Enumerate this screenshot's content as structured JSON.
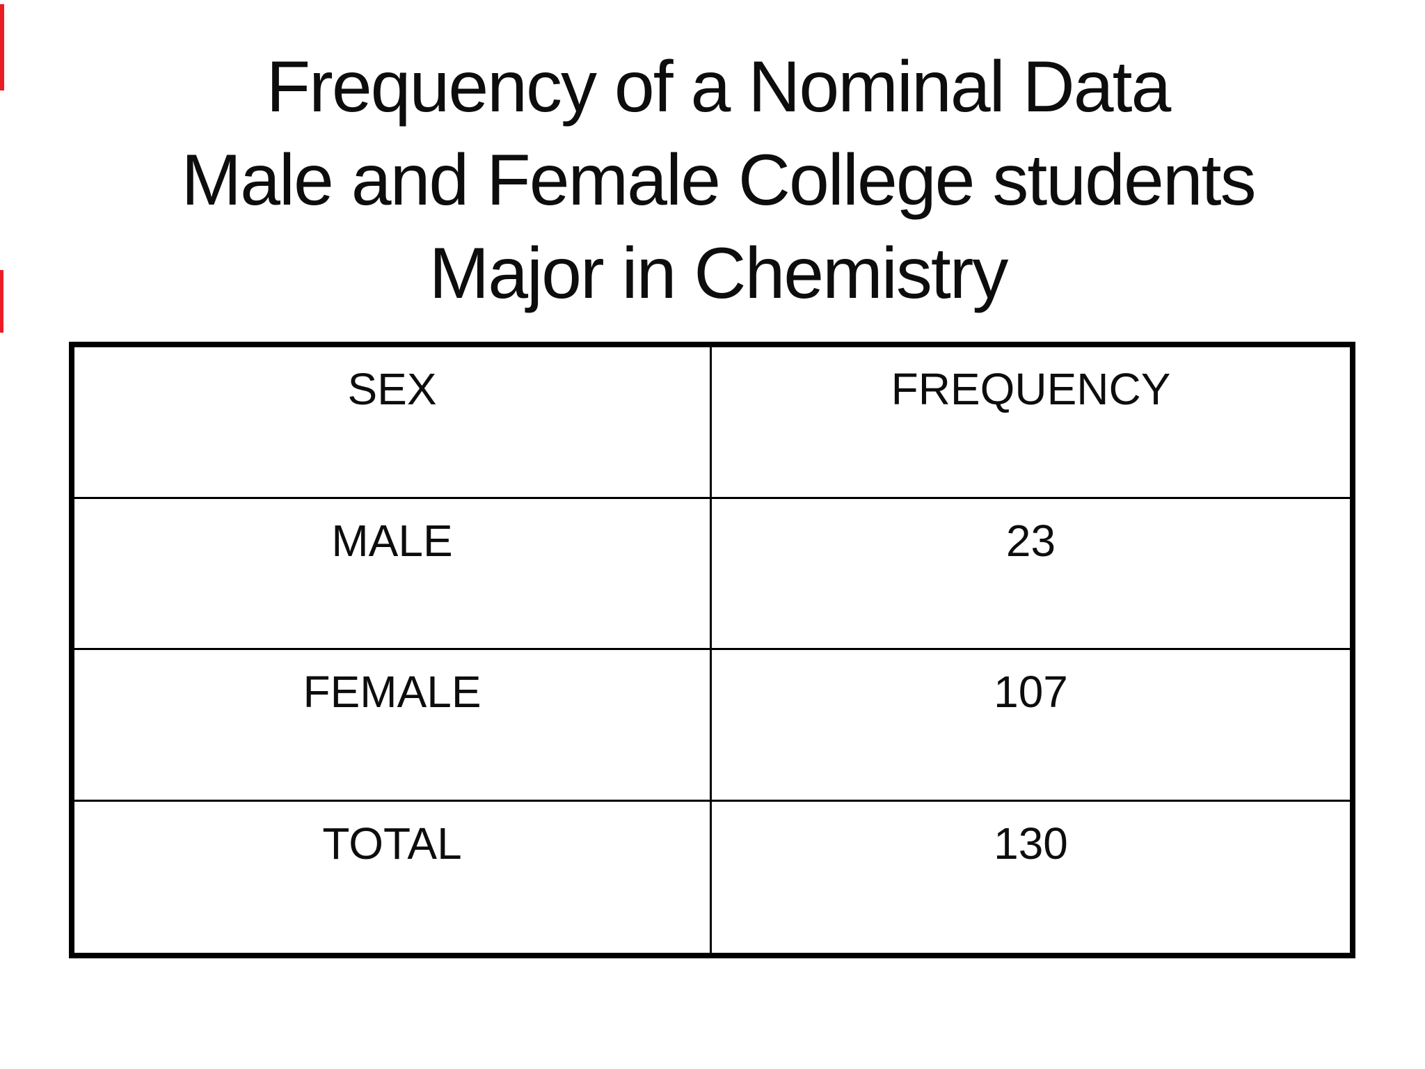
{
  "page": {
    "background_color": "#ffffff",
    "text_color": "#0d0d0d",
    "table_border_color": "#000000",
    "red_edge_mark_color": "#ea1d25"
  },
  "title": {
    "lines": [
      "Frequency of a Nominal Data",
      "Male and Female College students",
      "Major in Chemistry"
    ]
  },
  "table": {
    "headers": [
      "SEX",
      "FREQUENCY"
    ],
    "rows": [
      [
        "MALE",
        "23"
      ],
      [
        "FEMALE",
        "107"
      ],
      [
        "TOTAL",
        "130"
      ]
    ]
  },
  "chart_data": {
    "type": "table",
    "title": "Frequency of a Nominal Data Male and Female College students Major in Chemistry",
    "columns": [
      "SEX",
      "FREQUENCY"
    ],
    "rows": [
      [
        "MALE",
        23
      ],
      [
        "FEMALE",
        107
      ],
      [
        "TOTAL",
        130
      ]
    ]
  }
}
